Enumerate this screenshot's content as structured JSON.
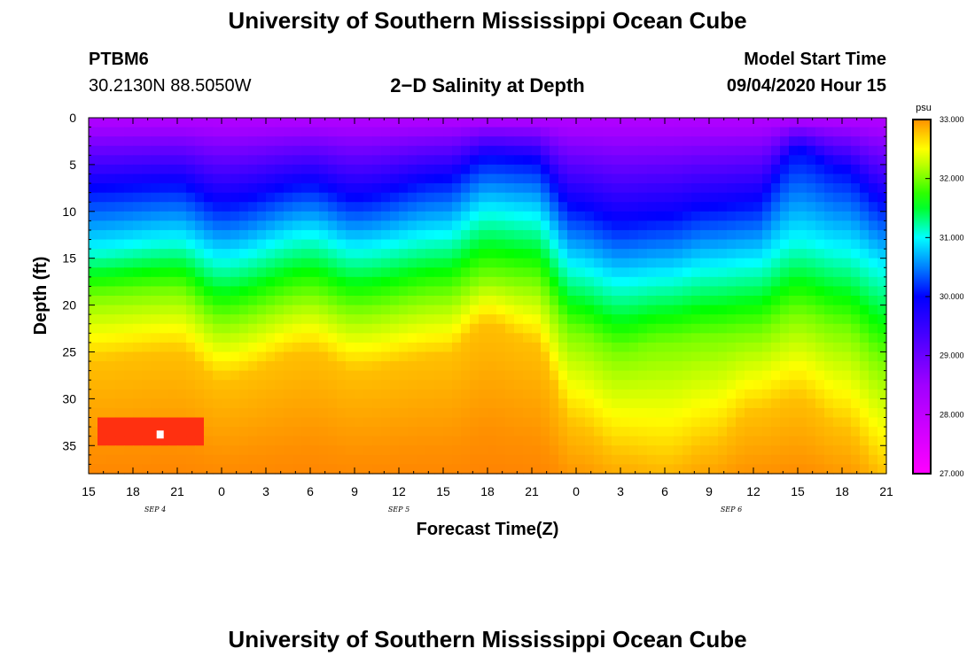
{
  "page": {
    "title_top": "University of Southern Mississippi Ocean Cube",
    "title_bottom": "University of Southern Mississippi Ocean Cube",
    "station": "PTBM6",
    "coords": "30.2130N 88.5050W",
    "subtitle": "2−D Salinity at Depth",
    "model_start_label": "Model Start Time",
    "model_start_value": "09/04/2020 Hour 15"
  },
  "chart_data": {
    "type": "heatmap",
    "title": "2−D Salinity at Depth",
    "xlabel": "Forecast Time(Z)",
    "ylabel": "Depth (ft)",
    "x_tick_labels": [
      "15",
      "18",
      "21",
      "0",
      "3",
      "6",
      "9",
      "12",
      "15",
      "18",
      "21",
      "0",
      "3",
      "6",
      "9",
      "12",
      "15",
      "18",
      "21"
    ],
    "x_hours_start": 15,
    "x_hours_end": 69,
    "date_labels": [
      {
        "label": "SEP 4",
        "hour": 19.5
      },
      {
        "label": "SEP 5",
        "hour": 36
      },
      {
        "label": "SEP 6",
        "hour": 58.5
      }
    ],
    "y_ticks": [
      0,
      5,
      10,
      15,
      20,
      25,
      30,
      35
    ],
    "ylim": [
      0,
      38
    ],
    "colorbar": {
      "unit": "psu",
      "min": 27.0,
      "max": 33.0,
      "labels": [
        "33.000",
        "32.000",
        "31.000",
        "30.000",
        "29.000",
        "28.000",
        "27.000"
      ],
      "colors": [
        {
          "v": 27.0,
          "c": "#ff00ff"
        },
        {
          "v": 28.5,
          "c": "#a000ff"
        },
        {
          "v": 30.0,
          "c": "#0000ff"
        },
        {
          "v": 31.0,
          "c": "#00ffff"
        },
        {
          "v": 31.6,
          "c": "#00ff00"
        },
        {
          "v": 32.2,
          "c": "#b4ff00"
        },
        {
          "v": 32.5,
          "c": "#ffff00"
        },
        {
          "v": 32.8,
          "c": "#ffc000"
        },
        {
          "v": 33.0,
          "c": "#ff9000"
        },
        {
          "v": 33.6,
          "c": "#ff3010"
        }
      ]
    },
    "salinity_surface_psu": 28.2,
    "isoline_depths": {
      "description": "depth (ft) at which salinity reaches given psu, per forecast hour",
      "hours": [
        15,
        21,
        24,
        30,
        33,
        39,
        42,
        45,
        48,
        51,
        54,
        57,
        60,
        63,
        66,
        69
      ],
      "psu_30": [
        7.5,
        7.0,
        9.0,
        7.0,
        8.5,
        6.5,
        4.2,
        4.5,
        9.5,
        11.0,
        10.5,
        9.5,
        9.0,
        3.5,
        5.5,
        9.0
      ],
      "psu_31": [
        14.0,
        13.0,
        15.0,
        12.5,
        14.0,
        12.5,
        10.0,
        10.5,
        16.0,
        17.5,
        17.0,
        16.0,
        15.5,
        13.0,
        14.0,
        16.0
      ],
      "psu_32": [
        19.0,
        18.5,
        21.5,
        19.0,
        20.5,
        19.0,
        17.0,
        17.5,
        23.0,
        25.0,
        24.0,
        23.5,
        23.0,
        21.0,
        22.5,
        26.0
      ],
      "psu_32_8": [
        26.0,
        25.0,
        28.0,
        25.0,
        27.0,
        25.5,
        22.0,
        24.0,
        33.0,
        36.0,
        37.0,
        35.0,
        31.5,
        30.0,
        33.0,
        38.0
      ]
    },
    "anomaly_high_value": {
      "psu": 33.6,
      "hour_range": [
        15.5,
        22.5
      ],
      "depth_range": [
        32.5,
        35
      ]
    }
  }
}
